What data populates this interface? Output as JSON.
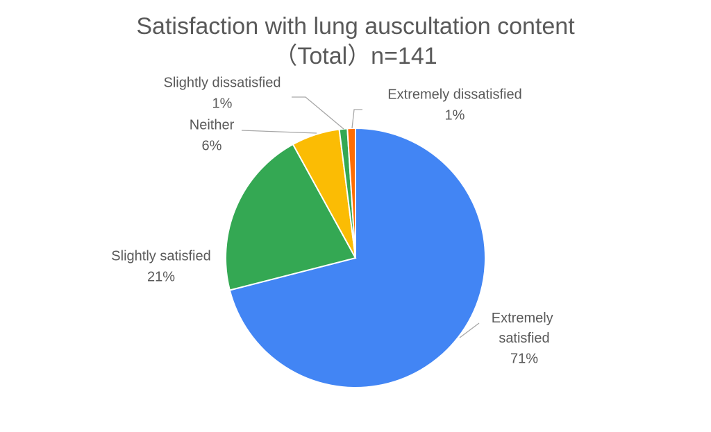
{
  "chart_data": {
    "type": "pie",
    "title": [
      "Satisfaction with lung auscultation content",
      "（Total）n=141"
    ],
    "categories": [
      "Extremely satisfied",
      "Slightly satisfied",
      "Neither",
      "Slightly dissatisfied",
      "Extremely dissatisfied"
    ],
    "values": [
      71,
      21,
      6,
      1,
      1
    ],
    "value_labels": [
      "71%",
      "21%",
      "6%",
      "1%",
      "1%"
    ],
    "colors": [
      "#4285f4",
      "#34a853",
      "#fbbc04",
      "#34a853",
      "#ff6d01"
    ]
  }
}
